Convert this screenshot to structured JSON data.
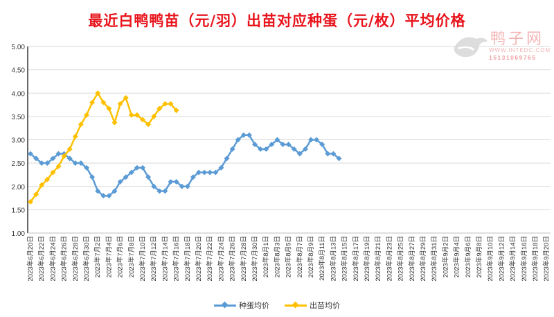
{
  "chart_data": {
    "type": "line",
    "title": "最近白鸭鸭苗（元/羽）出苗对应种蛋（元/枚）平均价格",
    "xlabel": "",
    "ylabel": "",
    "ylim": [
      1.0,
      5.0
    ],
    "y_ticks": [
      "1.00",
      "1.50",
      "2.00",
      "2.50",
      "3.00",
      "3.50",
      "4.00",
      "4.50",
      "5.00"
    ],
    "grid": true,
    "legend_position": "bottom",
    "x_step": "daily, starting at first x label",
    "x_labels": [
      "2023年6月20日",
      "2023年6月22日",
      "2023年6月24日",
      "2023年6月26日",
      "2023年6月28日",
      "2023年6月30日",
      "2023年7月2日",
      "2023年7月4日",
      "2023年7月6日",
      "2023年7月8日",
      "2023年7月10日",
      "2023年7月12日",
      "2023年7月14日",
      "2023年7月16日",
      "2023年7月18日",
      "2023年7月20日",
      "2023年7月22日",
      "2023年7月24日",
      "2023年7月26日",
      "2023年7月28日",
      "2023年7月30日",
      "2023年8月1日",
      "2023年8月3日",
      "2023年8月5日",
      "2023年8月7日",
      "2023年8月9日",
      "2023年8月11日",
      "2023年8月13日",
      "2023年8月15日",
      "2023年8月17日",
      "2023年8月19日",
      "2023年8月21日",
      "2023年8月23日",
      "2023年8月25日",
      "2023年8月27日",
      "2023年8月29日",
      "2023年8月31日",
      "2023年9月2日",
      "2023年9月4日",
      "2023年9月6日",
      "2023年9月8日",
      "2023年9月10日",
      "2023年9月12日",
      "2023年9月14日",
      "2023年9月16日",
      "2023年9月18日",
      "2023年9月20日"
    ],
    "series": [
      {
        "name": "种蛋均价",
        "color": "#5b9bd5",
        "values": [
          2.7,
          2.6,
          2.5,
          2.5,
          2.6,
          2.7,
          2.7,
          2.6,
          2.5,
          2.5,
          2.4,
          2.2,
          1.9,
          1.8,
          1.8,
          1.9,
          2.1,
          2.2,
          2.3,
          2.4,
          2.4,
          2.2,
          2.0,
          1.9,
          1.9,
          2.1,
          2.1,
          2.0,
          2.0,
          2.2,
          2.3,
          2.3,
          2.3,
          2.3,
          2.4,
          2.6,
          2.8,
          3.0,
          3.1,
          3.1,
          2.9,
          2.8,
          2.8,
          2.9,
          3.0,
          2.9,
          2.9,
          2.8,
          2.7,
          2.8,
          3.0,
          3.0,
          2.9,
          2.7,
          2.7,
          2.6
        ]
      },
      {
        "name": "出苗均价",
        "color": "#ffc000",
        "values": [
          1.67,
          1.83,
          2.03,
          2.15,
          2.3,
          2.43,
          2.65,
          2.8,
          3.07,
          3.33,
          3.53,
          3.8,
          4.0,
          3.8,
          3.67,
          3.37,
          3.77,
          3.9,
          3.53,
          3.53,
          3.43,
          3.33,
          3.5,
          3.67,
          3.77,
          3.77,
          3.63
        ]
      }
    ]
  },
  "watermark": {
    "name": "鸭子网",
    "url": "WWW.INTEDC.COM",
    "phone": "15131069765"
  }
}
